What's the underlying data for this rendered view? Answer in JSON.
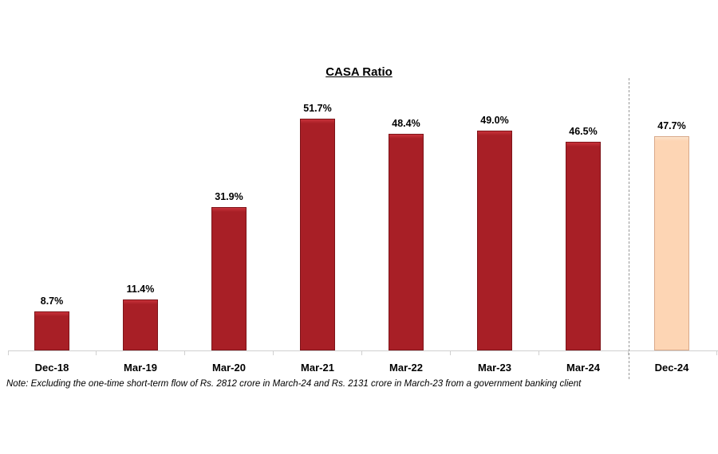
{
  "chart_data": {
    "type": "bar",
    "title": "CASA Ratio",
    "xlabel": "",
    "ylabel": "",
    "ylim": [
      0,
      60
    ],
    "grid": false,
    "legend": "none",
    "categories": [
      "Dec-18",
      "Mar-19",
      "Mar-20",
      "Mar-21",
      "Mar-22",
      "Mar-23",
      "Mar-24",
      "Dec-24"
    ],
    "values": [
      8.7,
      11.4,
      31.9,
      51.7,
      48.4,
      49.0,
      46.5,
      47.7
    ],
    "labels": [
      "8.7%",
      "11.4%",
      "31.9%",
      "51.7%",
      "48.4%",
      "49.0%",
      "46.5%",
      "47.7%"
    ],
    "bar_colors": [
      "#a81f26",
      "#a81f26",
      "#a81f26",
      "#a81f26",
      "#a81f26",
      "#a81f26",
      "#a81f26",
      "#fdd5b4"
    ],
    "annotations": [
      "Dashed vertical separator between Mar-24 and Dec-24"
    ],
    "note": "Note: Excluding the one-time short-term flow of Rs. 2812 crore in March-24 and Rs. 2131 crore in March-23 from a government banking client"
  }
}
